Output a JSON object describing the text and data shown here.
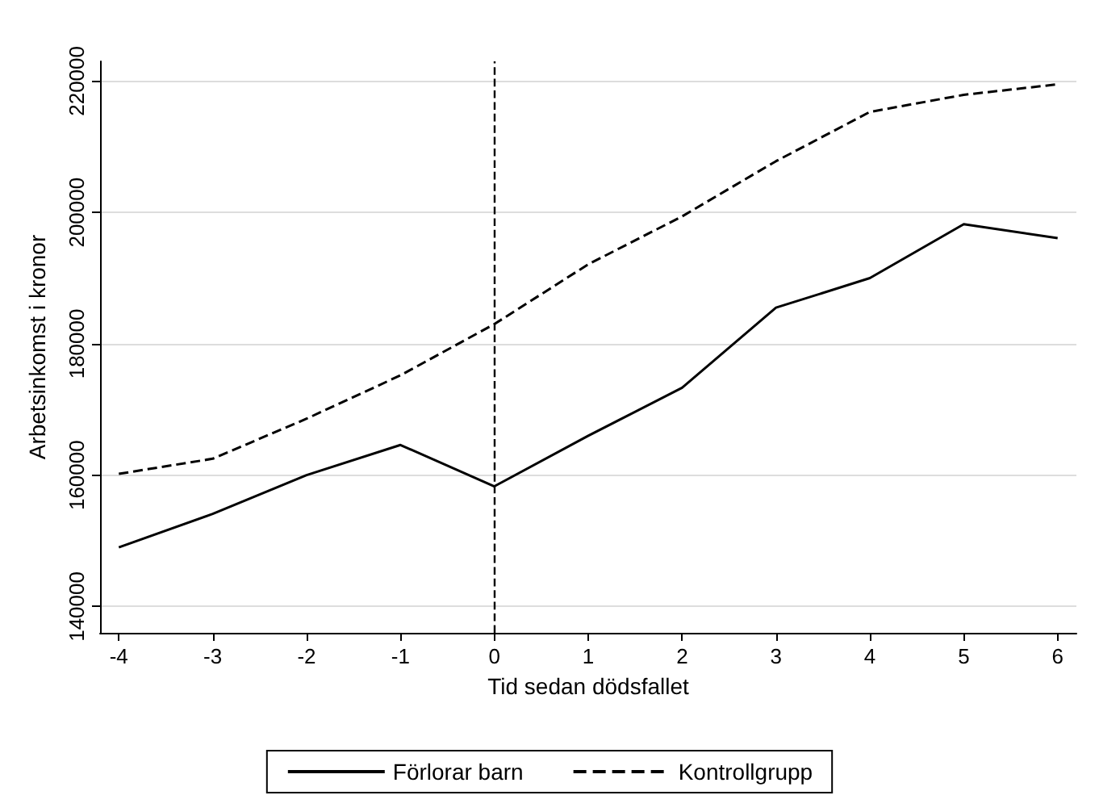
{
  "chart_data": {
    "type": "line",
    "xlabel": "Tid sedan dödsfallet",
    "ylabel": "Arbetsinkomst i kronor",
    "x": [
      -4,
      -3,
      -2,
      -1,
      0,
      1,
      2,
      3,
      4,
      5,
      6
    ],
    "series": [
      {
        "name": "Förlorar barn",
        "color": "#000000",
        "line_style": "solid",
        "values": [
          149000,
          154100,
          160000,
          164600,
          158300,
          166000,
          173300,
          185500,
          190000,
          198200,
          196100
        ]
      },
      {
        "name": "Kontrollgrupp",
        "color": "#000000",
        "line_style": "dashed",
        "values": [
          160200,
          162500,
          168600,
          175200,
          183000,
          192100,
          199400,
          207800,
          215300,
          217900,
          219500
        ]
      }
    ],
    "xlim": [
      -4.2,
      6.2
    ],
    "xticks": [
      -4,
      -3,
      -2,
      -1,
      0,
      1,
      2,
      3,
      4,
      5,
      6
    ],
    "ylim": [
      136000,
      223000
    ],
    "yticks": [
      140000,
      160000,
      180000,
      200000,
      220000
    ],
    "grid": "y",
    "legend": "bottom",
    "marker": "none",
    "ref_lines": [
      {
        "axis": "x",
        "value": 0,
        "line_style": "dashed",
        "color": "#000000"
      }
    ]
  }
}
